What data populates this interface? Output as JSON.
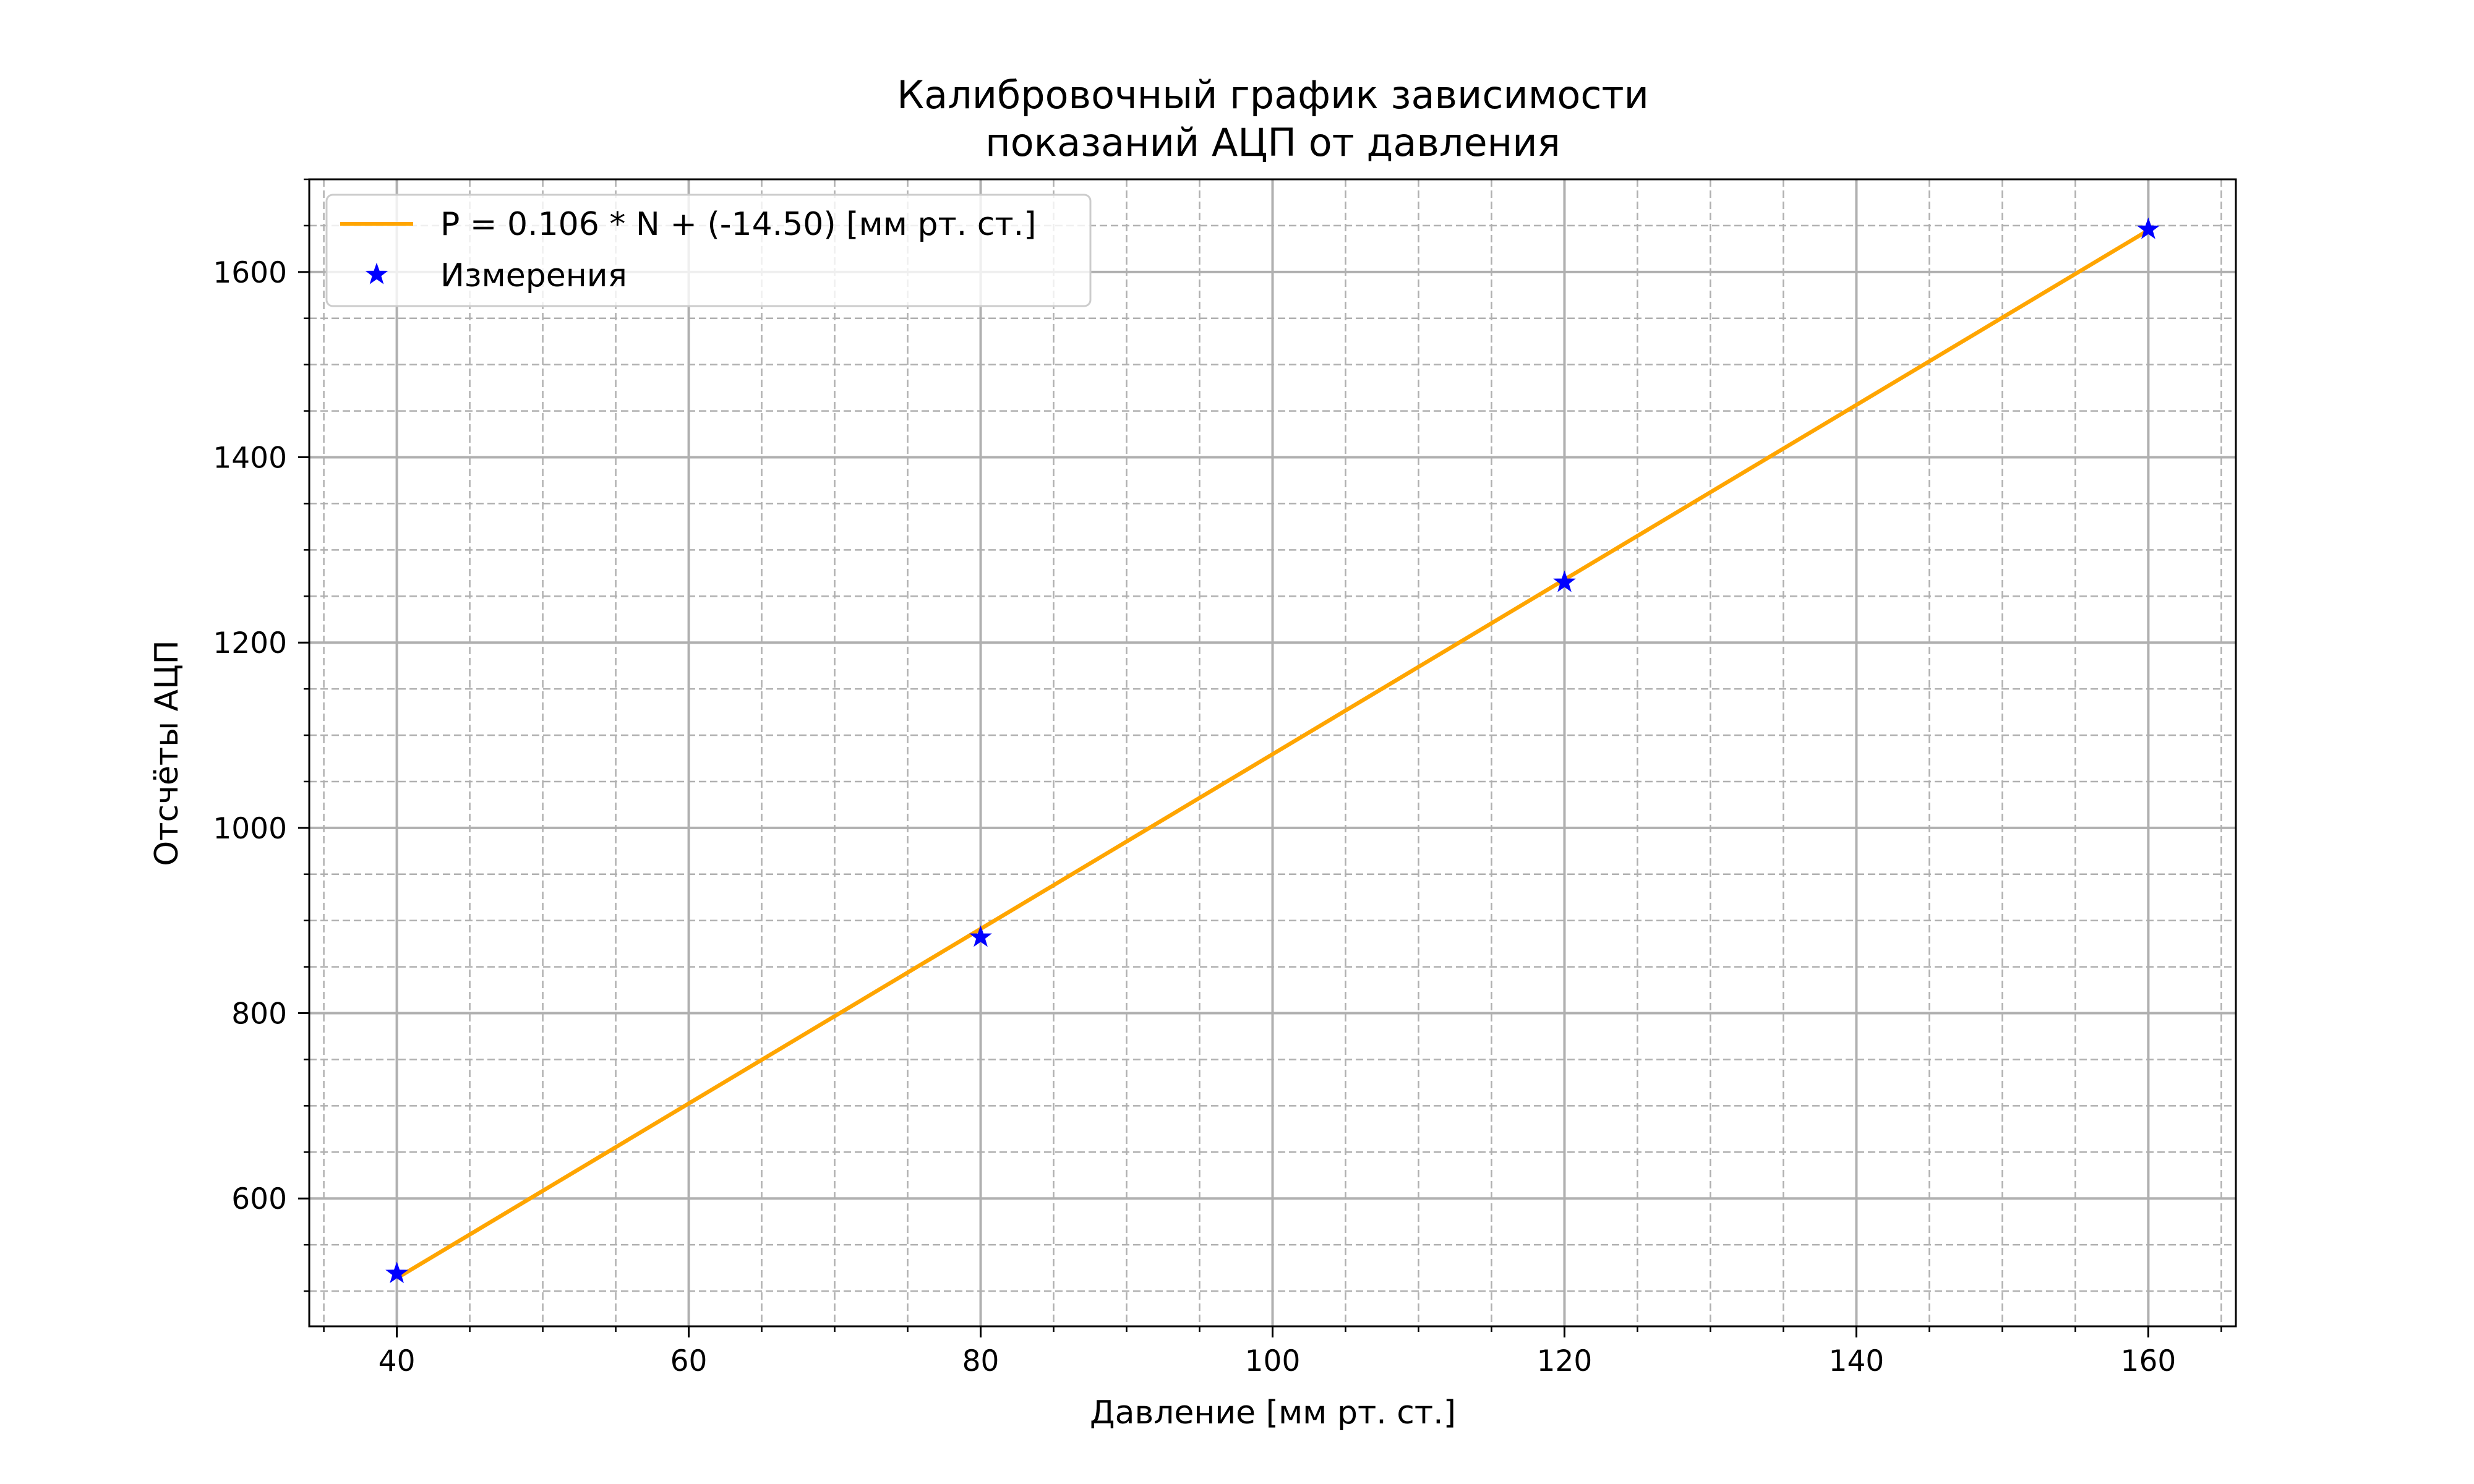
{
  "chart_data": {
    "type": "line",
    "title_lines": [
      "Калибровочный график зависимости",
      "показаний АЦП от давления"
    ],
    "xlabel": "Давление [мм рт. ст.]",
    "ylabel": "Отсчёты АЦП",
    "xlim": [
      34,
      166
    ],
    "ylim": [
      462,
      1700
    ],
    "x_ticks": [
      40,
      60,
      80,
      100,
      120,
      140,
      160
    ],
    "y_ticks": [
      600,
      800,
      1000,
      1200,
      1400,
      1600
    ],
    "x_minor_step": 5,
    "y_minor_step": 50,
    "grid": true,
    "legend_position": "top-left",
    "series": [
      {
        "name": "P = 0.106 * N + (-14.50) [мм рт. ст.]",
        "kind": "line",
        "color": "#ffa500",
        "x": [
          40,
          160
        ],
        "y": [
          514,
          1645
        ]
      },
      {
        "name": "Измерения",
        "kind": "scatter",
        "marker": "star",
        "color": "#0000ff",
        "x": [
          40,
          80,
          120,
          160
        ],
        "y": [
          519,
          882,
          1265,
          1646
        ]
      }
    ]
  }
}
